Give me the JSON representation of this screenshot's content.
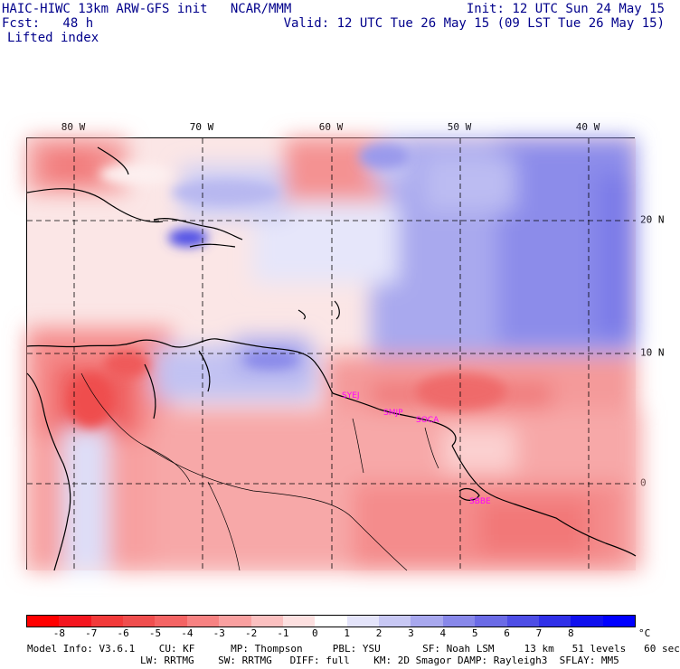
{
  "header": {
    "left_line1": "HAIC-HIWC 13km ARW-GFS init   NCAR/MMM",
    "left_line2": "Fcst:   48 h",
    "left_line3": "Lifted index",
    "right_line1": "Init: 12 UTC Sun 24 May 15",
    "right_line2": "Valid: 12 UTC Tue 26 May 15 (09 LST Tue 26 May 15)"
  },
  "map": {
    "longitude_labels": [
      "80 W",
      "70 W",
      "60 W",
      "50 W",
      "40 W"
    ],
    "latitude_labels": [
      "20 N",
      "10 N",
      "0"
    ],
    "longitude_range": [
      -83.5,
      -35
    ],
    "latitude_range": [
      -6.5,
      26
    ],
    "station_labels": [
      "SYEJ",
      "SMJP",
      "SOCA",
      "SBBE"
    ]
  },
  "colorbar": {
    "labels": [
      "-8",
      "-7",
      "-6",
      "-5",
      "-4",
      "-3",
      "-2",
      "-1",
      "0",
      "1",
      "2",
      "3",
      "4",
      "5",
      "6",
      "7",
      "8"
    ],
    "unit": "°C",
    "colors": [
      "#ff0000",
      "#f4161f",
      "#f23a3a",
      "#ef4e4e",
      "#f46464",
      "#f78282",
      "#f9a0a0",
      "#fbc0c0",
      "#fde0e0",
      "#ffffff",
      "#e4e4fa",
      "#c8c8f4",
      "#a8a8ee",
      "#8888ea",
      "#6b6be6",
      "#4e4ee6",
      "#3030e8",
      "#1010ee",
      "#0000ff"
    ]
  },
  "footer": {
    "line1": "Model Info: V3.6.1    CU: KF      MP: Thompson     PBL: YSU       SF: Noah LSM     13 km   51 levels   60 sec",
    "line2": "LW: RRTMG    SW: RRTMG   DIFF: full    KM: 2D Smagor DAMP: Rayleigh3  SFLAY: MM5"
  }
}
